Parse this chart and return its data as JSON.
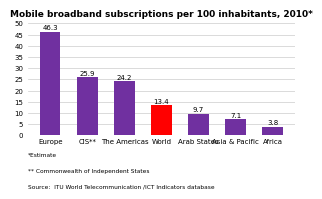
{
  "categories": [
    "Europe",
    "CIS**",
    "The Americas",
    "World",
    "Arab States",
    "Asia & Pacific",
    "Africa"
  ],
  "values": [
    46.3,
    25.9,
    24.2,
    13.4,
    9.7,
    7.1,
    3.8
  ],
  "bar_colors": [
    "#7030a0",
    "#7030a0",
    "#7030a0",
    "#ff0000",
    "#7030a0",
    "#7030a0",
    "#7030a0"
  ],
  "title": "Mobile broadband subscriptions per 100 inhabitants, 2010*",
  "ylim": [
    0,
    50
  ],
  "yticks": [
    0,
    5,
    10,
    15,
    20,
    25,
    30,
    35,
    40,
    45,
    50
  ],
  "footnote1": "*Estimate",
  "footnote2": "** Commonwealth of Independent States",
  "footnote3": "Source:  ITU World Telecommunication /ICT Indicators database",
  "background_color": "#ffffff",
  "grid_color": "#cccccc",
  "title_fontsize": 6.5,
  "label_fontsize": 5.0,
  "value_fontsize": 5.0,
  "footnote_fontsize": 4.2,
  "bar_width": 0.55
}
